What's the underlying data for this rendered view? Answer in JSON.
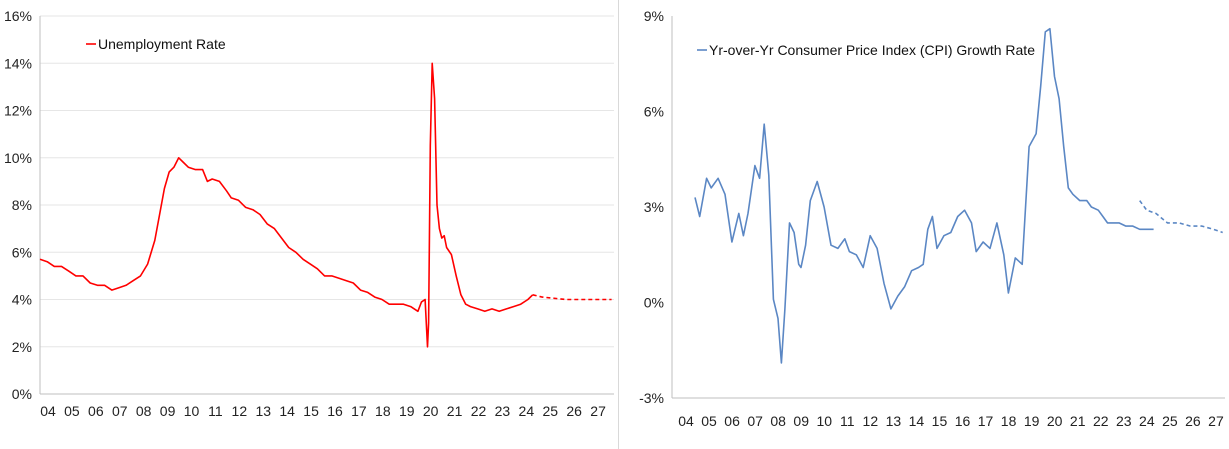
{
  "chart_data": [
    {
      "type": "line",
      "title": "",
      "xlabel": "",
      "ylabel": "",
      "ylim": [
        0,
        16
      ],
      "xlim": [
        2004,
        2028
      ],
      "yticks": [
        0,
        2,
        4,
        6,
        8,
        10,
        12,
        14,
        16
      ],
      "ytick_labels": [
        "0%",
        "2%",
        "4%",
        "6%",
        "8%",
        "10%",
        "12%",
        "14%",
        "16%"
      ],
      "xtick_labels": [
        "04",
        "05",
        "06",
        "07",
        "08",
        "09",
        "10",
        "11",
        "12",
        "13",
        "14",
        "15",
        "16",
        "17",
        "18",
        "19",
        "20",
        "21",
        "22",
        "23",
        "24",
        "25",
        "26",
        "27"
      ],
      "grid": true,
      "legend_position": "top-left",
      "series": [
        {
          "name": "Unemployment Rate",
          "color": "#ff0000",
          "style": "solid",
          "x": [
            2004.0,
            2004.3,
            2004.6,
            2004.9,
            2005.2,
            2005.5,
            2005.8,
            2006.1,
            2006.4,
            2006.7,
            2007.0,
            2007.3,
            2007.6,
            2007.9,
            2008.2,
            2008.5,
            2008.8,
            2009.0,
            2009.2,
            2009.4,
            2009.6,
            2009.8,
            2010.0,
            2010.2,
            2010.5,
            2010.8,
            2011.0,
            2011.2,
            2011.5,
            2011.8,
            2012.0,
            2012.3,
            2012.6,
            2012.9,
            2013.2,
            2013.5,
            2013.8,
            2014.1,
            2014.4,
            2014.7,
            2015.0,
            2015.3,
            2015.6,
            2015.9,
            2016.2,
            2016.5,
            2016.8,
            2017.1,
            2017.4,
            2017.7,
            2018.0,
            2018.3,
            2018.6,
            2018.9,
            2019.2,
            2019.5,
            2019.8,
            2019.95,
            2020.1,
            2020.2,
            2020.25,
            2020.32,
            2020.4,
            2020.5,
            2020.6,
            2020.7,
            2020.8,
            2020.9,
            2021.0,
            2021.2,
            2021.4,
            2021.6,
            2021.8,
            2022.0,
            2022.3,
            2022.6,
            2022.9,
            2023.2,
            2023.5,
            2023.8,
            2024.1,
            2024.4,
            2024.6
          ],
          "y": [
            5.7,
            5.6,
            5.4,
            5.4,
            5.2,
            5.0,
            5.0,
            4.7,
            4.6,
            4.6,
            4.4,
            4.5,
            4.6,
            4.8,
            5.0,
            5.5,
            6.5,
            7.6,
            8.7,
            9.4,
            9.6,
            10.0,
            9.8,
            9.6,
            9.5,
            9.5,
            9.0,
            9.1,
            9.0,
            8.6,
            8.3,
            8.2,
            7.9,
            7.8,
            7.6,
            7.2,
            7.0,
            6.6,
            6.2,
            6.0,
            5.7,
            5.5,
            5.3,
            5.0,
            5.0,
            4.9,
            4.8,
            4.7,
            4.4,
            4.3,
            4.1,
            4.0,
            3.8,
            3.8,
            3.8,
            3.7,
            3.5,
            3.9,
            4.0,
            2.0,
            3.0,
            10.5,
            14.0,
            12.5,
            8.0,
            7.0,
            6.6,
            6.7,
            6.2,
            5.9,
            5.0,
            4.2,
            3.8,
            3.7,
            3.6,
            3.5,
            3.6,
            3.5,
            3.6,
            3.7,
            3.8,
            4.0,
            4.2
          ]
        },
        {
          "name": "",
          "color": "#ff0000",
          "style": "dashed",
          "x": [
            2024.6,
            2025.0,
            2025.5,
            2026.0,
            2026.5,
            2027.0,
            2027.5,
            2027.9
          ],
          "y": [
            4.2,
            4.1,
            4.05,
            4.0,
            4.0,
            4.0,
            4.0,
            4.0
          ]
        }
      ]
    },
    {
      "type": "line",
      "title": "",
      "xlabel": "",
      "ylabel": "",
      "ylim": [
        -3,
        9
      ],
      "xlim": [
        2004,
        2028
      ],
      "yticks": [
        -3,
        0,
        3,
        6,
        9
      ],
      "ytick_labels": [
        "-3%",
        "0%",
        "3%",
        "6%",
        "9%"
      ],
      "xtick_labels": [
        "04",
        "05",
        "06",
        "07",
        "08",
        "09",
        "10",
        "11",
        "12",
        "13",
        "14",
        "15",
        "16",
        "17",
        "18",
        "19",
        "20",
        "21",
        "22",
        "23",
        "24",
        "25",
        "26",
        "27"
      ],
      "grid": false,
      "legend_position": "top-left",
      "series": [
        {
          "name": "Yr-over-Yr Consumer Price Index (CPI) Growth Rate",
          "color": "#5b87c4",
          "style": "solid",
          "x": [
            2005.0,
            2005.2,
            2005.5,
            2005.7,
            2006.0,
            2006.3,
            2006.6,
            2006.9,
            2007.1,
            2007.3,
            2007.6,
            2007.8,
            2008.0,
            2008.2,
            2008.4,
            2008.6,
            2008.75,
            2008.9,
            2009.1,
            2009.3,
            2009.5,
            2009.6,
            2009.8,
            2010.0,
            2010.3,
            2010.6,
            2010.9,
            2011.2,
            2011.5,
            2011.7,
            2012.0,
            2012.3,
            2012.6,
            2012.9,
            2013.2,
            2013.5,
            2013.8,
            2014.1,
            2014.4,
            2014.7,
            2014.9,
            2015.1,
            2015.3,
            2015.5,
            2015.8,
            2016.1,
            2016.4,
            2016.7,
            2017.0,
            2017.2,
            2017.5,
            2017.8,
            2018.1,
            2018.4,
            2018.6,
            2018.9,
            2019.2,
            2019.5,
            2019.8,
            2020.0,
            2020.2,
            2020.4,
            2020.6,
            2020.8,
            2021.0,
            2021.2,
            2021.4,
            2021.7,
            2022.0,
            2022.2,
            2022.5,
            2022.7,
            2022.9,
            2023.1,
            2023.4,
            2023.7,
            2024.0,
            2024.3,
            2024.6,
            2024.9
          ],
          "y": [
            3.3,
            2.7,
            3.9,
            3.6,
            3.9,
            3.4,
            1.9,
            2.8,
            2.1,
            2.8,
            4.3,
            3.9,
            5.6,
            4.0,
            0.1,
            -0.5,
            -1.9,
            -0.2,
            2.5,
            2.2,
            1.2,
            1.1,
            1.8,
            3.2,
            3.8,
            3.0,
            1.8,
            1.7,
            2.0,
            1.6,
            1.5,
            1.1,
            2.1,
            1.7,
            0.6,
            -0.2,
            0.2,
            0.5,
            1.0,
            1.1,
            1.2,
            2.3,
            2.7,
            1.7,
            2.1,
            2.2,
            2.7,
            2.9,
            2.5,
            1.6,
            1.9,
            1.7,
            2.5,
            1.5,
            0.3,
            1.4,
            1.2,
            4.9,
            5.3,
            6.8,
            8.5,
            8.6,
            7.1,
            6.4,
            4.9,
            3.6,
            3.4,
            3.2,
            3.2,
            3.0,
            2.9,
            2.7,
            2.5,
            2.5,
            2.5,
            2.4,
            2.4,
            2.3,
            2.3,
            2.3
          ]
        },
        {
          "name": "",
          "color": "#5b87c4",
          "style": "dashed",
          "x": [
            2024.3,
            2024.6,
            2025.0,
            2025.5,
            2026.0,
            2026.5,
            2027.0,
            2027.5,
            2027.9
          ],
          "y": [
            3.2,
            2.9,
            2.8,
            2.5,
            2.5,
            2.4,
            2.4,
            2.3,
            2.2
          ]
        }
      ]
    }
  ]
}
